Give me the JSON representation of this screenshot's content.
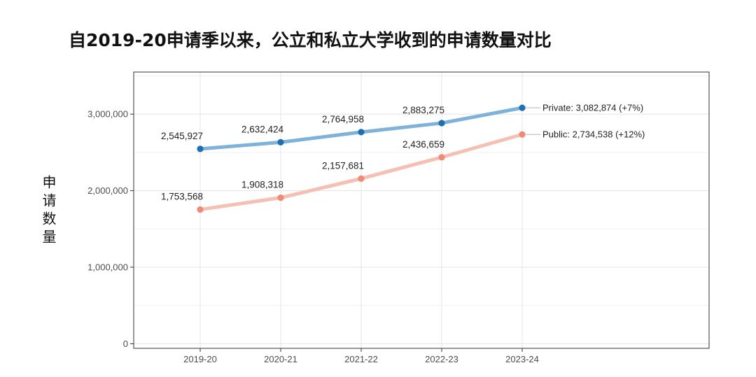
{
  "chart_data": {
    "type": "line",
    "title": "自2019-20申请季以来，公立和私立大学收到的申请数量对比",
    "xlabel": "",
    "ylabel": "申请数量",
    "categories": [
      "2019-20",
      "2020-21",
      "2021-22",
      "2022-23",
      "2023-24"
    ],
    "ylim": [
      -60000,
      3550000
    ],
    "yticks": [
      0,
      1000000,
      2000000,
      3000000
    ],
    "ytick_labels": [
      "0",
      "1,000,000",
      "2,000,000",
      "3,000,000"
    ],
    "grid": true,
    "series": [
      {
        "key": "private",
        "color": "#1f6db3",
        "line_color": "#7eb2db",
        "values": [
          2545927,
          2632424,
          2764958,
          2883275,
          3082874
        ],
        "value_labels": [
          "2,545,927",
          "2,632,424",
          "2,764,958",
          "2,883,275"
        ],
        "end_label": "Private: 3,082,874 (+7%)"
      },
      {
        "key": "public",
        "color": "#ef8a76",
        "line_color": "#f5c0b3",
        "values": [
          1753568,
          1908318,
          2157681,
          2436659,
          2734538
        ],
        "value_labels": [
          "1,753,568",
          "1,908,318",
          "2,157,681",
          "2,436,659"
        ],
        "end_label": "Public: 2,734,538 (+12%)"
      }
    ]
  }
}
